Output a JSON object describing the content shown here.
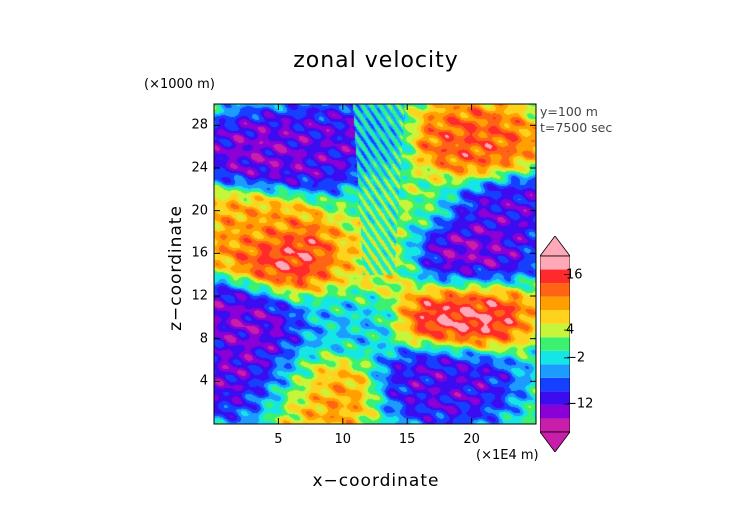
{
  "chart_data": {
    "type": "heatmap",
    "title": "zonal velocity",
    "xlabel": "x−coordinate",
    "ylabel": "z−coordinate",
    "x_multiplier": "(×1E4 m)",
    "y_multiplier": "(×1000 m)",
    "annotation_lines": [
      "y=100  m",
      "t=7500 sec"
    ],
    "xlim": [
      0,
      25
    ],
    "ylim": [
      0,
      30
    ],
    "x_ticks": [
      "5",
      "10",
      "15",
      "20"
    ],
    "x_tick_values": [
      5,
      10,
      15,
      20
    ],
    "y_ticks": [
      "4",
      "8",
      "12",
      "16",
      "20",
      "24",
      "28"
    ],
    "y_tick_values": [
      4,
      8,
      12,
      16,
      20,
      24,
      28
    ],
    "colorbar": {
      "tick_labels": [
        "16",
        "4",
        "−2",
        "−12"
      ],
      "tick_values": [
        16,
        4,
        -2,
        -12
      ],
      "range": [
        -18,
        20
      ],
      "colors_low_to_high": [
        "#c81eaa",
        "#8a00d6",
        "#3b0cf0",
        "#1640ff",
        "#1d9cff",
        "#14e6e6",
        "#3cf070",
        "#c6f53a",
        "#ffd21e",
        "#ffa000",
        "#ff6414",
        "#ff2a2a",
        "#ffa8b8"
      ]
    },
    "field_features": [
      {
        "x": 4,
        "z": 4,
        "value": -15
      },
      {
        "x": 3,
        "z": 10,
        "value": -14
      },
      {
        "x": 10,
        "z": 10,
        "value": -3
      },
      {
        "x": 6,
        "z": 15,
        "value": 17
      },
      {
        "x": 19,
        "z": 10.5,
        "value": 18
      },
      {
        "x": 19,
        "z": 15.5,
        "value": -15
      },
      {
        "x": 18,
        "z": 4,
        "value": -12
      },
      {
        "x": 7,
        "z": 3,
        "value": 12
      },
      {
        "x": 12.5,
        "z": 15,
        "value": 6
      },
      {
        "x": 4,
        "z": 25,
        "value": -14
      },
      {
        "x": 10,
        "z": 26,
        "value": -12
      },
      {
        "x": 20,
        "z": 26,
        "value": 14
      },
      {
        "x": 22,
        "z": 20,
        "value": -12
      },
      {
        "x": 3,
        "z": 19,
        "value": 10
      },
      {
        "x": 15,
        "z": 21,
        "value": 2
      }
    ]
  }
}
